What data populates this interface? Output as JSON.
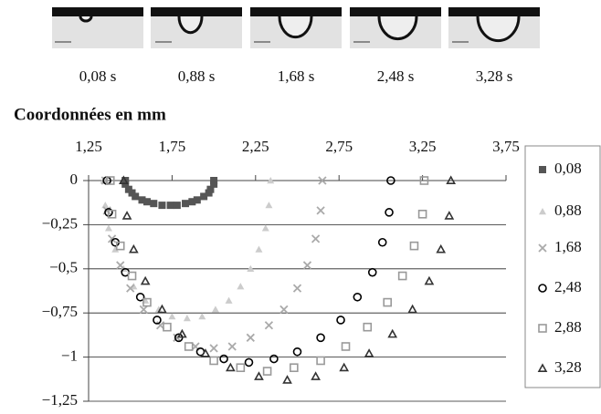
{
  "images": [
    {
      "label": "0,08 s"
    },
    {
      "label": "0,88 s"
    },
    {
      "label": "1,68 s"
    },
    {
      "label": "2,48 s"
    },
    {
      "label": "3,28 s"
    }
  ],
  "chart_data": {
    "type": "scatter",
    "title": "Coordonnées en mm",
    "xlim": [
      1.25,
      3.75
    ],
    "xticks": [
      {
        "value": 1.25,
        "label": "1,25"
      },
      {
        "value": 1.75,
        "label": "1,75"
      },
      {
        "value": 2.25,
        "label": "2,25"
      },
      {
        "value": 2.75,
        "label": "2,75"
      },
      {
        "value": 3.25,
        "label": "3,25"
      },
      {
        "value": 3.75,
        "label": "3,75"
      }
    ],
    "ylim": [
      -1.25,
      0
    ],
    "yticks": [
      {
        "value": 0,
        "label": "0"
      },
      {
        "value": -0.25,
        "label": "−0,25"
      },
      {
        "value": -0.5,
        "label": "−0,5"
      },
      {
        "value": -0.75,
        "label": "−0,75"
      },
      {
        "value": -1,
        "label": "−1"
      },
      {
        "value": -1.25,
        "label": "−1,25"
      }
    ],
    "grid": true,
    "legend": "right",
    "series": [
      {
        "name": "0,08",
        "color": "#555555",
        "marker": "square-filled",
        "x": [
          1.47,
          1.47,
          1.49,
          1.51,
          1.53,
          1.57,
          1.6,
          1.64,
          1.69,
          1.74,
          1.78,
          1.83,
          1.87,
          1.9,
          1.94,
          1.97,
          1.98,
          2.0,
          2.0
        ],
        "values": [
          0,
          -0.02,
          -0.05,
          -0.07,
          -0.09,
          -0.11,
          -0.12,
          -0.13,
          -0.14,
          -0.14,
          -0.14,
          -0.13,
          -0.12,
          -0.11,
          -0.09,
          -0.07,
          -0.05,
          -0.02,
          0
        ]
      },
      {
        "name": "0,88",
        "color": "#cccccc",
        "marker": "triangle-filled",
        "x": [
          1.34,
          1.35,
          1.37,
          1.41,
          1.46,
          1.52,
          1.59,
          1.67,
          1.75,
          1.84,
          1.93,
          2.01,
          2.09,
          2.16,
          2.22,
          2.27,
          2.31,
          2.33,
          2.34
        ],
        "values": [
          0,
          -0.14,
          -0.27,
          -0.39,
          -0.5,
          -0.6,
          -0.68,
          -0.73,
          -0.77,
          -0.78,
          -0.77,
          -0.73,
          -0.68,
          -0.6,
          -0.5,
          -0.39,
          -0.27,
          -0.14,
          0
        ]
      },
      {
        "name": "1,68",
        "color": "#aaaaaa",
        "marker": "cross",
        "x": [
          1.35,
          1.36,
          1.39,
          1.44,
          1.5,
          1.58,
          1.68,
          1.78,
          1.89,
          2.0,
          2.11,
          2.22,
          2.33,
          2.42,
          2.5,
          2.56,
          2.61,
          2.64,
          2.65
        ],
        "values": [
          0,
          -0.17,
          -0.33,
          -0.48,
          -0.61,
          -0.73,
          -0.82,
          -0.89,
          -0.94,
          -0.95,
          -0.94,
          -0.89,
          -0.82,
          -0.73,
          -0.61,
          -0.48,
          -0.33,
          -0.17,
          0
        ]
      },
      {
        "name": "2,48",
        "color": "#000000",
        "marker": "circle-open",
        "x": [
          1.36,
          1.37,
          1.41,
          1.47,
          1.56,
          1.66,
          1.79,
          1.92,
          2.06,
          2.21,
          2.36,
          2.5,
          2.64,
          2.76,
          2.86,
          2.95,
          3.01,
          3.05,
          3.06
        ],
        "values": [
          0,
          -0.18,
          -0.35,
          -0.52,
          -0.66,
          -0.79,
          -0.89,
          -0.97,
          -1.01,
          -1.03,
          -1.01,
          -0.97,
          -0.89,
          -0.79,
          -0.66,
          -0.52,
          -0.35,
          -0.18,
          0
        ]
      },
      {
        "name": "2,88",
        "color": "#999999",
        "marker": "square-open",
        "x": [
          1.38,
          1.39,
          1.44,
          1.51,
          1.6,
          1.72,
          1.85,
          2.0,
          2.16,
          2.32,
          2.48,
          2.64,
          2.79,
          2.92,
          3.04,
          3.13,
          3.2,
          3.25,
          3.26
        ],
        "values": [
          0,
          -0.19,
          -0.37,
          -0.54,
          -0.69,
          -0.83,
          -0.94,
          -1.02,
          -1.06,
          -1.08,
          -1.06,
          -1.02,
          -0.94,
          -0.83,
          -0.69,
          -0.54,
          -0.37,
          -0.19,
          0
        ]
      },
      {
        "name": "3,28",
        "color": "#333333",
        "marker": "triangle-open",
        "x": [
          1.46,
          1.48,
          1.52,
          1.59,
          1.69,
          1.81,
          1.95,
          2.1,
          2.27,
          2.44,
          2.61,
          2.78,
          2.93,
          3.07,
          3.19,
          3.29,
          3.36,
          3.41,
          3.42
        ],
        "values": [
          0,
          -0.2,
          -0.39,
          -0.57,
          -0.73,
          -0.87,
          -0.98,
          -1.06,
          -1.11,
          -1.13,
          -1.11,
          -1.06,
          -0.98,
          -0.87,
          -0.73,
          -0.57,
          -0.39,
          -0.2,
          0
        ]
      }
    ]
  }
}
